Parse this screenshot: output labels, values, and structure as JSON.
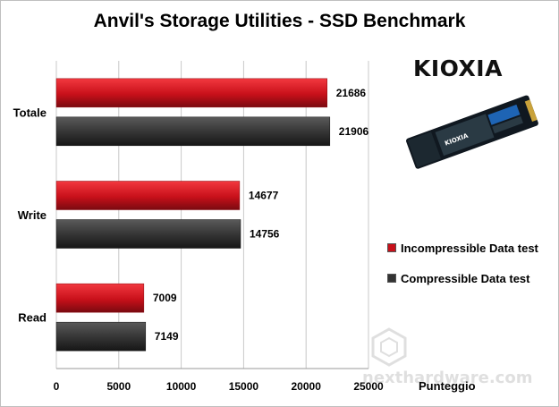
{
  "chart_data": {
    "type": "bar",
    "orientation": "horizontal",
    "title": "Anvil's Storage Utilities - SSD Benchmark",
    "categories": [
      "Totale",
      "Write",
      "Read"
    ],
    "series": [
      {
        "name": "Incompressible Data test",
        "values": [
          21686,
          14677,
          7009
        ]
      },
      {
        "name": "Compressible Data test",
        "values": [
          21906,
          14756,
          7149
        ]
      }
    ],
    "xlabel": "Punteggio",
    "ylabel": "",
    "xlim": [
      0,
      25000
    ],
    "xticks": [
      0,
      5000,
      10000,
      15000,
      20000,
      25000
    ],
    "grid": true,
    "legend_position": "right",
    "colors": [
      "#c8101a",
      "#333333"
    ]
  },
  "branding": {
    "logo_text": "KIOXIA",
    "ssd_label": "KIOXIA",
    "watermark_text": "nexthardware.com"
  }
}
